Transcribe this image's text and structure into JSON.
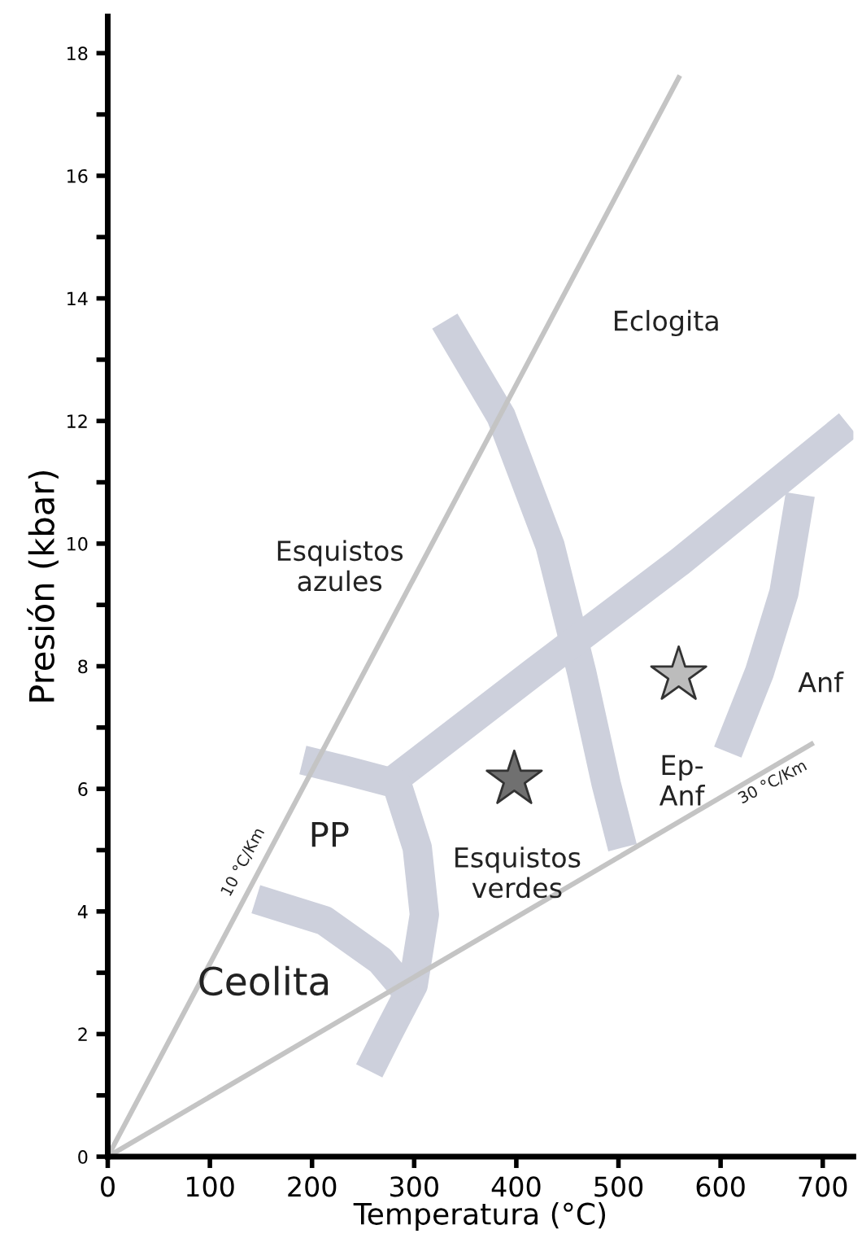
{
  "chart_data": {
    "type": "line",
    "xlabel": "Temperatura (°C)",
    "ylabel": "Presión (kbar)",
    "xlim": [
      0,
      730
    ],
    "xticks": [
      0,
      100,
      200,
      300,
      400,
      500,
      600,
      700
    ],
    "ylim": [
      0,
      18.6
    ],
    "yticks": [
      0,
      {
        "value": 1,
        "label": null
      },
      2,
      {
        "value": 3,
        "label": null
      },
      4,
      {
        "value": 5,
        "label": null
      },
      6,
      {
        "value": 7,
        "label": null
      },
      8,
      {
        "value": 9,
        "label": null
      },
      10,
      {
        "value": 11,
        "label": null
      },
      12,
      {
        "value": 13,
        "label": null
      },
      14,
      {
        "value": 15,
        "label": null
      },
      16,
      {
        "value": 17,
        "label": null
      },
      18
    ],
    "grid": false,
    "legend": false,
    "series": [
      {
        "color": "#c4c4c4",
        "x": [
          0,
          559
        ],
        "values": [
          0,
          17.6
        ]
      },
      {
        "color": "#c4c4c4",
        "x": [
          0,
          689
        ],
        "values": [
          0,
          6.73
        ]
      },
      {
        "color": "#cdd0dc",
        "x": [
          330,
          385,
          433,
          464,
          488,
          504
        ],
        "values": [
          13.63,
          12.08,
          9.97,
          7.9,
          6.08,
          5.04
        ]
      },
      {
        "color": "#cdd0dc",
        "x": [
          275,
          417,
          559,
          725
        ],
        "values": [
          6.08,
          7.9,
          9.69,
          11.94
        ]
      },
      {
        "color": "#cdd0dc",
        "x": [
          678,
          662,
          638,
          607
        ],
        "values": [
          10.8,
          9.2,
          7.9,
          6.6
        ]
      },
      {
        "color": "#cdd0dc",
        "x": [
          191,
          235,
          283,
          303,
          310,
          299,
          275,
          256
        ],
        "values": [
          6.47,
          6.29,
          6.08,
          5.04,
          3.95,
          2.8,
          2.03,
          1.4
        ]
      },
      {
        "color": "#cdd0dc",
        "x": [
          145,
          212,
          267,
          294
        ],
        "values": [
          4.2,
          3.85,
          3.2,
          2.67
        ]
      },
      {
        "type": "scatter",
        "marker": "star",
        "color": "#707070",
        "x": [
          398
        ],
        "values": [
          6.15
        ]
      },
      {
        "type": "scatter",
        "marker": "star",
        "color": "#bcbcbc",
        "x": [
          559
        ],
        "values": [
          7.85
        ]
      }
    ],
    "annotations": [
      "Eclogita",
      "Esquistos\nazules",
      "PP",
      "Ceolita",
      "Esquistos\nverdes",
      "Ep-\nAnf",
      "Anf",
      "10 °C/Km",
      "30 °C/Km"
    ]
  }
}
